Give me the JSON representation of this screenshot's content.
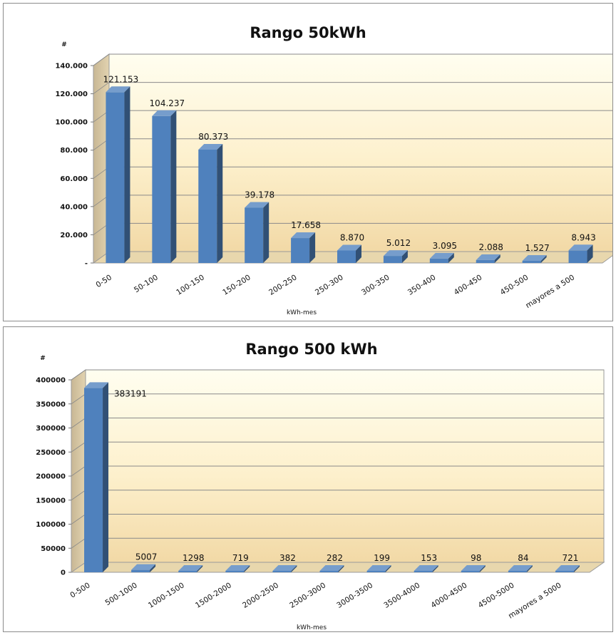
{
  "chart_data": [
    {
      "type": "bar",
      "title": "Rango 50kWh",
      "ylabel": "#",
      "xlabel": "kWh-mes",
      "categories": [
        "0-50",
        "50-100",
        "100-150",
        "150-200",
        "200-250",
        "250-300",
        "300-350",
        "350-400",
        "400-450",
        "450-500",
        "mayores a 500"
      ],
      "values": [
        121153,
        104237,
        80373,
        39178,
        17658,
        8870,
        5012,
        3095,
        2088,
        1527,
        8943
      ],
      "data_labels": [
        "121.153",
        "104.237",
        "80.373",
        "39.178",
        "17.658",
        "8.870",
        "5.012",
        "3.095",
        "2.088",
        "1.527",
        "8.943"
      ],
      "ylim": [
        0,
        140000
      ],
      "yticks": [
        0,
        20000,
        40000,
        60000,
        80000,
        100000,
        120000,
        140000
      ],
      "ytick_labels": [
        "-",
        "20.000",
        "40.000",
        "60.000",
        "80.000",
        "100.000",
        "120.000",
        "140.000"
      ],
      "grid": true,
      "bar_color": "#4f81bd"
    },
    {
      "type": "bar",
      "title": "Rango 500 kWh",
      "ylabel": "#",
      "xlabel": "kWh-mes",
      "categories": [
        "0-500",
        "500-1000",
        "1000-1500",
        "1500-2000",
        "2000-2500",
        "2500-3000",
        "3000-3500",
        "3500-4000",
        "4000-4500",
        "4500-5000",
        "mayores a 5000"
      ],
      "values": [
        383191,
        5007,
        1298,
        719,
        382,
        282,
        199,
        153,
        98,
        84,
        721
      ],
      "data_labels": [
        "383191",
        "5007",
        "1298",
        "719",
        "382",
        "282",
        "199",
        "153",
        "98",
        "84",
        "721"
      ],
      "ylim": [
        0,
        400000
      ],
      "yticks": [
        0,
        50000,
        100000,
        150000,
        200000,
        250000,
        300000,
        350000,
        400000
      ],
      "ytick_labels": [
        "0",
        "50000",
        "100000",
        "150000",
        "200000",
        "250000",
        "300000",
        "350000",
        "400000"
      ],
      "grid": true,
      "bar_color": "#4f81bd"
    }
  ]
}
